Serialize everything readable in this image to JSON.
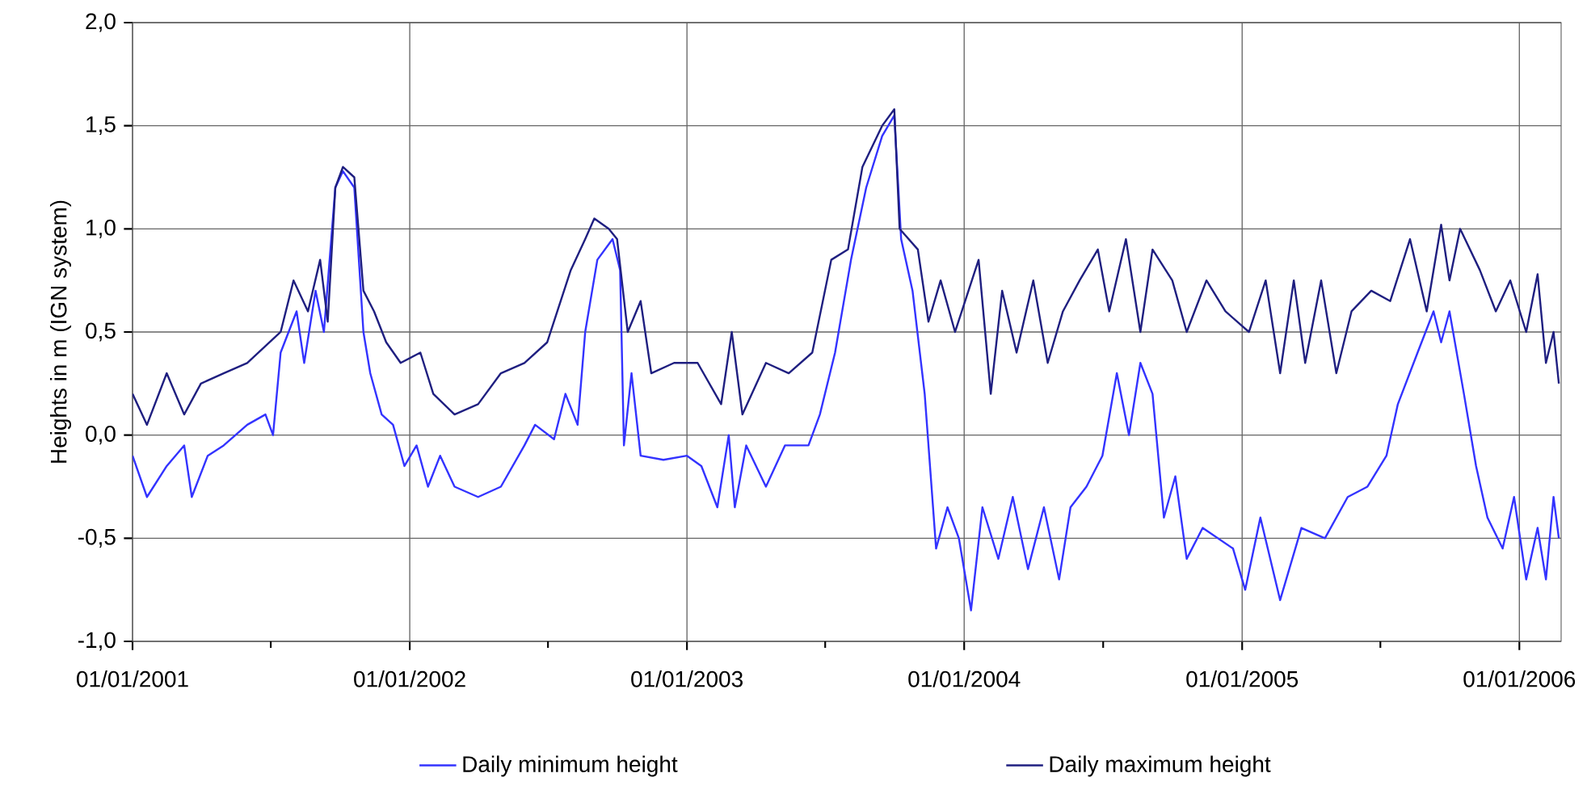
{
  "chart_data": {
    "type": "line",
    "ylabel": "Heights in m (IGN system)",
    "xlim": [
      "2001-01-01",
      "2006-02-25"
    ],
    "xticks": [
      {
        "value": "2001-01-01",
        "label": "01/01/2001"
      },
      {
        "value": "2001-07-02",
        "label": null
      },
      {
        "value": "2002-01-01",
        "label": "01/01/2002"
      },
      {
        "value": "2002-07-02",
        "label": null
      },
      {
        "value": "2003-01-01",
        "label": "01/01/2003"
      },
      {
        "value": "2003-07-02",
        "label": null
      },
      {
        "value": "2004-01-01",
        "label": "01/01/2004"
      },
      {
        "value": "2004-07-02",
        "label": null
      },
      {
        "value": "2005-01-01",
        "label": "01/01/2005"
      },
      {
        "value": "2005-07-02",
        "label": null
      },
      {
        "value": "2006-01-01",
        "label": "01/01/2006"
      }
    ],
    "ylim": [
      -1.0,
      2.0
    ],
    "yticks": [
      {
        "value": -1.0,
        "label": "-1,0"
      },
      {
        "value": -0.5,
        "label": "-0,5"
      },
      {
        "value": 0.0,
        "label": "0,0"
      },
      {
        "value": 0.5,
        "label": "0,5"
      },
      {
        "value": 1.0,
        "label": "1,0"
      },
      {
        "value": 1.5,
        "label": "1,5"
      },
      {
        "value": 2.0,
        "label": "2,0"
      }
    ],
    "grid": true,
    "legend": "bottom",
    "marker": "none",
    "line_style": "solid",
    "series": [
      {
        "name": "Daily minimum height",
        "color": "#3333ff",
        "x": [
          "2001-01-01",
          "2001-01-20",
          "2001-02-15",
          "2001-03-10",
          "2001-03-20",
          "2001-04-10",
          "2001-05-01",
          "2001-06-01",
          "2001-06-25",
          "2001-07-05",
          "2001-07-15",
          "2001-08-05",
          "2001-08-15",
          "2001-08-30",
          "2001-09-10",
          "2001-09-25",
          "2001-10-05",
          "2001-10-20",
          "2001-11-01",
          "2001-11-10",
          "2001-11-25",
          "2001-12-10",
          "2001-12-25",
          "2002-01-10",
          "2002-01-25",
          "2002-02-10",
          "2002-03-01",
          "2002-04-01",
          "2002-05-01",
          "2002-06-01",
          "2002-06-15",
          "2002-07-10",
          "2002-07-25",
          "2002-08-10",
          "2002-08-20",
          "2002-09-05",
          "2002-09-25",
          "2002-10-05",
          "2002-10-10",
          "2002-10-20",
          "2002-11-01",
          "2002-12-01",
          "2003-01-01",
          "2003-01-20",
          "2003-02-10",
          "2003-02-25",
          "2003-03-05",
          "2003-03-20",
          "2003-04-15",
          "2003-05-10",
          "2003-06-10",
          "2003-06-25",
          "2003-07-15",
          "2003-08-05",
          "2003-08-25",
          "2003-09-15",
          "2003-10-01",
          "2003-10-10",
          "2003-10-25",
          "2003-11-10",
          "2003-11-25",
          "2003-12-10",
          "2003-12-25",
          "2004-01-10",
          "2004-01-25",
          "2004-02-15",
          "2004-03-05",
          "2004-03-25",
          "2004-04-15",
          "2004-05-05",
          "2004-05-20",
          "2004-06-10",
          "2004-07-01",
          "2004-07-20",
          "2004-08-05",
          "2004-08-20",
          "2004-09-05",
          "2004-09-20",
          "2004-10-05",
          "2004-10-20",
          "2004-11-10",
          "2004-12-20",
          "2005-01-05",
          "2005-01-25",
          "2005-02-20",
          "2005-03-20",
          "2005-04-20",
          "2005-05-20",
          "2005-06-15",
          "2005-07-10",
          "2005-07-25",
          "2005-08-20",
          "2005-09-10",
          "2005-09-20",
          "2005-10-01",
          "2005-10-20",
          "2005-11-05",
          "2005-11-20",
          "2005-12-10",
          "2005-12-25",
          "2006-01-10",
          "2006-01-25",
          "2006-02-05",
          "2006-02-15",
          "2006-02-22"
        ],
        "values": [
          -0.1,
          -0.3,
          -0.15,
          -0.05,
          -0.3,
          -0.1,
          -0.05,
          0.05,
          0.1,
          0.0,
          0.4,
          0.6,
          0.35,
          0.7,
          0.5,
          1.2,
          1.28,
          1.2,
          0.5,
          0.3,
          0.1,
          0.05,
          -0.15,
          -0.05,
          -0.25,
          -0.1,
          -0.25,
          -0.3,
          -0.25,
          -0.05,
          0.05,
          -0.02,
          0.2,
          0.05,
          0.5,
          0.85,
          0.95,
          0.8,
          -0.05,
          0.3,
          -0.1,
          -0.12,
          -0.1,
          -0.15,
          -0.35,
          0.0,
          -0.35,
          -0.05,
          -0.25,
          -0.05,
          -0.05,
          0.1,
          0.4,
          0.85,
          1.2,
          1.45,
          1.55,
          0.95,
          0.7,
          0.2,
          -0.55,
          -0.35,
          -0.5,
          -0.85,
          -0.35,
          -0.6,
          -0.3,
          -0.65,
          -0.35,
          -0.7,
          -0.35,
          -0.25,
          -0.1,
          0.3,
          0.0,
          0.35,
          0.2,
          -0.4,
          -0.2,
          -0.6,
          -0.45,
          -0.55,
          -0.75,
          -0.4,
          -0.8,
          -0.45,
          -0.5,
          -0.3,
          -0.25,
          -0.1,
          0.15,
          0.4,
          0.6,
          0.45,
          0.6,
          0.2,
          -0.15,
          -0.4,
          -0.55,
          -0.3,
          -0.7,
          -0.45,
          -0.7,
          -0.3,
          -0.5
        ]
      },
      {
        "name": "Daily maximum height",
        "color": "#1f1f80",
        "x": [
          "2001-01-01",
          "2001-01-20",
          "2001-02-15",
          "2001-03-10",
          "2001-04-01",
          "2001-05-01",
          "2001-06-01",
          "2001-07-15",
          "2001-08-01",
          "2001-08-20",
          "2001-09-05",
          "2001-09-15",
          "2001-09-25",
          "2001-10-05",
          "2001-10-20",
          "2001-11-01",
          "2001-11-15",
          "2001-12-01",
          "2001-12-20",
          "2002-01-15",
          "2002-02-01",
          "2002-03-01",
          "2002-04-01",
          "2002-05-01",
          "2002-06-01",
          "2002-07-01",
          "2002-08-01",
          "2002-08-20",
          "2002-09-01",
          "2002-09-20",
          "2002-10-01",
          "2002-10-15",
          "2002-11-01",
          "2002-11-15",
          "2002-12-15",
          "2003-01-15",
          "2003-02-15",
          "2003-03-01",
          "2003-03-15",
          "2003-04-15",
          "2003-05-15",
          "2003-06-15",
          "2003-07-10",
          "2003-08-01",
          "2003-08-20",
          "2003-09-15",
          "2003-10-01",
          "2003-10-08",
          "2003-11-01",
          "2003-11-15",
          "2003-12-01",
          "2003-12-20",
          "2004-01-20",
          "2004-02-05",
          "2004-02-20",
          "2004-03-10",
          "2004-04-01",
          "2004-04-20",
          "2004-05-10",
          "2004-06-01",
          "2004-06-25",
          "2004-07-10",
          "2004-08-01",
          "2004-08-20",
          "2004-09-05",
          "2004-10-01",
          "2004-10-20",
          "2004-11-15",
          "2004-12-10",
          "2005-01-10",
          "2005-02-01",
          "2005-02-20",
          "2005-03-10",
          "2005-03-25",
          "2005-04-15",
          "2005-05-05",
          "2005-05-25",
          "2005-06-20",
          "2005-07-15",
          "2005-08-10",
          "2005-09-01",
          "2005-09-20",
          "2005-10-01",
          "2005-10-15",
          "2005-11-10",
          "2005-12-01",
          "2005-12-20",
          "2006-01-10",
          "2006-01-25",
          "2006-02-05",
          "2006-02-15",
          "2006-02-22"
        ],
        "values": [
          0.2,
          0.05,
          0.3,
          0.1,
          0.25,
          0.3,
          0.35,
          0.5,
          0.75,
          0.6,
          0.85,
          0.55,
          1.2,
          1.3,
          1.25,
          0.7,
          0.6,
          0.45,
          0.35,
          0.4,
          0.2,
          0.1,
          0.15,
          0.3,
          0.35,
          0.45,
          0.8,
          0.95,
          1.05,
          1.0,
          0.95,
          0.5,
          0.65,
          0.3,
          0.35,
          0.35,
          0.15,
          0.5,
          0.1,
          0.35,
          0.3,
          0.4,
          0.85,
          0.9,
          1.3,
          1.5,
          1.58,
          1.0,
          0.9,
          0.55,
          0.75,
          0.5,
          0.85,
          0.2,
          0.7,
          0.4,
          0.75,
          0.35,
          0.6,
          0.75,
          0.9,
          0.6,
          0.95,
          0.5,
          0.9,
          0.75,
          0.5,
          0.75,
          0.6,
          0.5,
          0.75,
          0.3,
          0.75,
          0.35,
          0.75,
          0.3,
          0.6,
          0.7,
          0.65,
          0.95,
          0.6,
          1.02,
          0.75,
          1.0,
          0.8,
          0.6,
          0.75,
          0.5,
          0.78,
          0.35,
          0.5,
          0.25
        ]
      }
    ]
  }
}
